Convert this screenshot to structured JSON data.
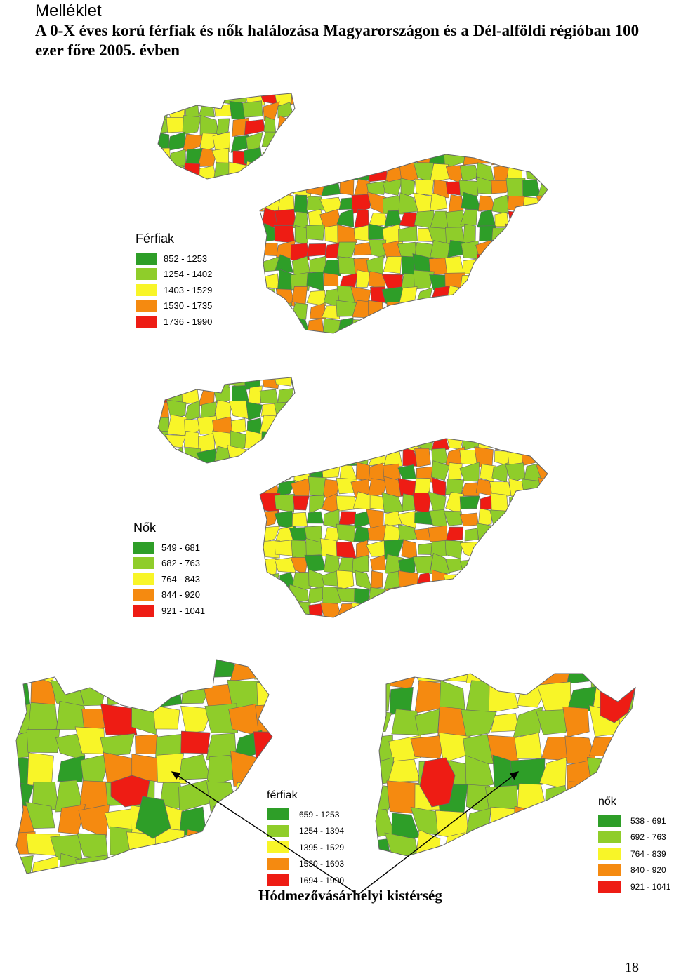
{
  "header": {
    "section": "Melléklet",
    "title": "A 0-X éves korú férfiak és nők halálozása Magyarországon és a Dél-alföldi régióban 100 ezer főre 2005. évben"
  },
  "palette": {
    "c1": "#2e9e28",
    "c2": "#8fcd2a",
    "c3": "#f8f528",
    "c4": "#f58a10",
    "c5": "#ee1c14",
    "border": "#666666"
  },
  "maps": [
    {
      "legend_title": "Férfiak",
      "legend": [
        "852 - 1253",
        "1254 - 1402",
        "1403 - 1529",
        "1530 - 1735",
        "1736 - 1990"
      ]
    },
    {
      "legend_title": "Nők",
      "legend": [
        "549 - 681",
        "682 - 763",
        "764 - 843",
        "844 - 920",
        "921 - 1041"
      ]
    },
    {
      "legend_title": "férfiak",
      "legend": [
        "659 - 1253",
        "1254 - 1394",
        "1395 - 1529",
        "1530 - 1693",
        "1694 - 1990"
      ]
    },
    {
      "legend_title": "nők",
      "legend": [
        "538 - 691",
        "692 - 763",
        "764 - 839",
        "840 - 920",
        "921 - 1041"
      ]
    }
  ],
  "caption": "Hódmezővásárhelyi kistérség",
  "page_number": "18"
}
